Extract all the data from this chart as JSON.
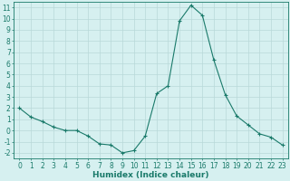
{
  "x": [
    0,
    1,
    2,
    3,
    4,
    5,
    6,
    7,
    8,
    9,
    10,
    11,
    12,
    13,
    14,
    15,
    16,
    17,
    18,
    19,
    20,
    21,
    22,
    23
  ],
  "y": [
    2.0,
    1.2,
    0.8,
    0.3,
    0.0,
    0.0,
    -0.5,
    -1.2,
    -1.3,
    -2.0,
    -1.8,
    -0.5,
    3.3,
    4.0,
    9.8,
    11.2,
    10.3,
    6.3,
    3.2,
    1.3,
    0.5,
    -0.3,
    -0.6,
    -1.3
  ],
  "line_color": "#1a7a6a",
  "marker": "+",
  "marker_color": "#1a7a6a",
  "bg_color": "#d6f0f0",
  "grid_color": "#b8d8d8",
  "xlabel": "Humidex (Indice chaleur)",
  "xlim": [
    -0.5,
    23.5
  ],
  "ylim": [
    -2.5,
    11.5
  ],
  "yticks": [
    -2,
    -1,
    0,
    1,
    2,
    3,
    4,
    5,
    6,
    7,
    8,
    9,
    10,
    11
  ],
  "xticks": [
    0,
    1,
    2,
    3,
    4,
    5,
    6,
    7,
    8,
    9,
    10,
    11,
    12,
    13,
    14,
    15,
    16,
    17,
    18,
    19,
    20,
    21,
    22,
    23
  ],
  "xlabel_fontsize": 6.5,
  "tick_fontsize": 5.5,
  "axis_color": "#1a7a6a"
}
